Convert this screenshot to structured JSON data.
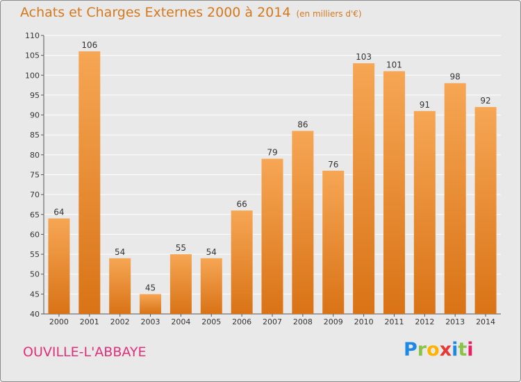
{
  "header": {
    "title": "Achats et Charges Externes 2000 à 2014",
    "subtitle": "(en milliers d'€)"
  },
  "footer": {
    "city": "OUVILLE-L'ABBAYE",
    "logo_letters": [
      "P",
      "r",
      "o",
      "x",
      "i",
      "t",
      "i"
    ]
  },
  "colors": {
    "bar_top": "#f6a654",
    "bar_bottom": "#d97316",
    "background": "#e9e9e9",
    "grid": "#ffffff",
    "title": "#d4781e",
    "city": "#e0307a"
  },
  "chart_data": {
    "type": "bar",
    "title": "Achats et Charges Externes 2000 à 2014",
    "subtitle": "(en milliers d'€)",
    "xlabel": "",
    "ylabel": "",
    "categories": [
      "2000",
      "2001",
      "2002",
      "2003",
      "2004",
      "2005",
      "2006",
      "2007",
      "2008",
      "2009",
      "2010",
      "2011",
      "2012",
      "2013",
      "2014"
    ],
    "values": [
      64,
      106,
      54,
      45,
      55,
      54,
      66,
      79,
      86,
      76,
      103,
      101,
      91,
      98,
      92
    ],
    "ylim": [
      40,
      110
    ],
    "yticks": [
      40,
      45,
      50,
      55,
      60,
      65,
      70,
      75,
      80,
      85,
      90,
      95,
      100,
      105,
      110
    ],
    "grid": true,
    "data_labels": true
  }
}
